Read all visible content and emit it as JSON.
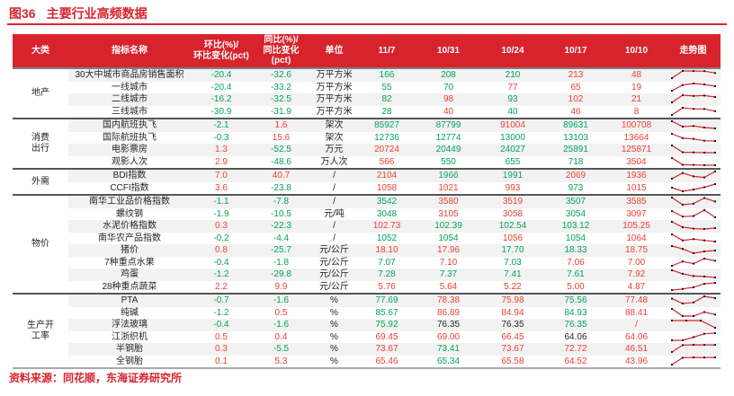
{
  "title": {
    "label": "图36",
    "text": "主要行业高频数据"
  },
  "source_note": "资料来源：同花顺，东海证券研究所",
  "colors": {
    "accent_red": "#d8232d",
    "value_red": "#f03e32",
    "value_green": "#00a45a",
    "value_black": "#231f20",
    "row_stripe": "#f2f2f2",
    "group_separator": "#55565a",
    "header_text": "#ffffff",
    "sparkline_line": "#d8232d",
    "sparkline_marker": "#1a1a1a"
  },
  "headers_display": {
    "wow": "环比(%)/\n环比变化(pct)",
    "yoy": "同比(%)/\n同比变化\n(pct)"
  },
  "chart_data": {
    "type": "table",
    "title": "图36 主要行业高频数据",
    "columns": [
      "大类",
      "指标名称",
      "环比(%)/环比变化(pct)",
      "同比(%)/同比变化(pct)",
      "单位",
      "11/7",
      "10/31",
      "10/24",
      "10/17",
      "10/10",
      "走势图"
    ],
    "legend_note": "green = decline vs prior week / negative, red = rise vs prior week / positive, black = unchanged",
    "groups": [
      {
        "category": "地产",
        "rows": [
          {
            "indicator": "30大中城市商品房销售面积",
            "wow": "-20.4",
            "wow_color": "g",
            "yoy": "-32.6",
            "yoy_color": "g",
            "unit": "万平方米",
            "values": [
              "166",
              "208",
              "210",
              "213",
              "48"
            ],
            "value_colors": [
              "g",
              "g",
              "g",
              "r",
              "r"
            ]
          },
          {
            "indicator": "一线城市",
            "wow": "-20.4",
            "wow_color": "g",
            "yoy": "-33.2",
            "yoy_color": "g",
            "unit": "万平方米",
            "values": [
              "55",
              "70",
              "77",
              "65",
              "19"
            ],
            "value_colors": [
              "g",
              "g",
              "r",
              "r",
              "r"
            ]
          },
          {
            "indicator": "二线城市",
            "wow": "-16.2",
            "wow_color": "g",
            "yoy": "-32.5",
            "yoy_color": "g",
            "unit": "万平方米",
            "values": [
              "82",
              "98",
              "93",
              "102",
              "21"
            ],
            "value_colors": [
              "g",
              "r",
              "g",
              "r",
              "r"
            ]
          },
          {
            "indicator": "三线城市",
            "wow": "-30.9",
            "wow_color": "g",
            "yoy": "-31.9",
            "yoy_color": "g",
            "unit": "万平方米",
            "values": [
              "28",
              "40",
              "40",
              "46",
              "8"
            ],
            "value_colors": [
              "g",
              "r",
              "g",
              "r",
              "r"
            ]
          }
        ]
      },
      {
        "category": "消费\n出行",
        "rows": [
          {
            "indicator": "国内航班执飞",
            "wow": "-2.1",
            "wow_color": "g",
            "yoy": "1.6",
            "yoy_color": "r",
            "unit": "架次",
            "values": [
              "85927",
              "87799",
              "91004",
              "89631",
              "100708"
            ],
            "value_colors": [
              "g",
              "g",
              "r",
              "g",
              "r"
            ]
          },
          {
            "indicator": "国际航班执飞",
            "wow": "-0.3",
            "wow_color": "g",
            "yoy": "15.6",
            "yoy_color": "r",
            "unit": "架次",
            "values": [
              "12736",
              "12774",
              "13000",
              "13103",
              "13664"
            ],
            "value_colors": [
              "g",
              "g",
              "g",
              "g",
              "r"
            ]
          },
          {
            "indicator": "电影票房",
            "wow": "1.3",
            "wow_color": "r",
            "yoy": "-52.5",
            "yoy_color": "g",
            "unit": "万元",
            "values": [
              "20724",
              "20449",
              "24027",
              "25891",
              "125871"
            ],
            "value_colors": [
              "r",
              "g",
              "g",
              "g",
              "r"
            ]
          },
          {
            "indicator": "观影人次",
            "wow": "2.9",
            "wow_color": "r",
            "yoy": "-48.6",
            "yoy_color": "g",
            "unit": "万人次",
            "values": [
              "566",
              "550",
              "655",
              "718",
              "3504"
            ],
            "value_colors": [
              "r",
              "g",
              "g",
              "g",
              "r"
            ]
          }
        ]
      },
      {
        "category": "外需",
        "rows": [
          {
            "indicator": "BDI指数",
            "wow": "7.0",
            "wow_color": "r",
            "yoy": "40.7",
            "yoy_color": "r",
            "unit": "/",
            "values": [
              "2104",
              "1966",
              "1991",
              "2069",
              "1936"
            ],
            "value_colors": [
              "r",
              "g",
              "g",
              "r",
              "r"
            ]
          },
          {
            "indicator": "CCFI指数",
            "wow": "3.6",
            "wow_color": "r",
            "yoy": "-23.8",
            "yoy_color": "g",
            "unit": "/",
            "values": [
              "1058",
              "1021",
              "993",
              "973",
              "1015"
            ],
            "value_colors": [
              "r",
              "r",
              "r",
              "g",
              "r"
            ]
          }
        ]
      },
      {
        "category": "物价",
        "rows": [
          {
            "indicator": "南华工业品价格指数",
            "wow": "-1.1",
            "wow_color": "g",
            "yoy": "-7.8",
            "yoy_color": "g",
            "unit": "/",
            "values": [
              "3542",
              "3580",
              "3519",
              "3507",
              "3585"
            ],
            "value_colors": [
              "g",
              "r",
              "r",
              "g",
              "r"
            ]
          },
          {
            "indicator": "螺纹钢",
            "wow": "-1.9",
            "wow_color": "g",
            "yoy": "-10.5",
            "yoy_color": "g",
            "unit": "元/吨",
            "values": [
              "3048",
              "3105",
              "3058",
              "3054",
              "3097"
            ],
            "value_colors": [
              "g",
              "r",
              "r",
              "g",
              "r"
            ]
          },
          {
            "indicator": "水泥价格指数",
            "wow": "0.3",
            "wow_color": "r",
            "yoy": "-22.3",
            "yoy_color": "g",
            "unit": "/",
            "values": [
              "102.73",
              "102.39",
              "102.54",
              "103.12",
              "105.25"
            ],
            "value_colors": [
              "r",
              "g",
              "g",
              "g",
              "r"
            ]
          },
          {
            "indicator": "南华农产品指数",
            "wow": "-0.2",
            "wow_color": "g",
            "yoy": "-4.4",
            "yoy_color": "g",
            "unit": "/",
            "values": [
              "1052",
              "1054",
              "1056",
              "1054",
              "1064"
            ],
            "value_colors": [
              "g",
              "g",
              "r",
              "g",
              "r"
            ]
          },
          {
            "indicator": "猪价",
            "wow": "0.8",
            "wow_color": "r",
            "yoy": "-25.7",
            "yoy_color": "g",
            "unit": "元/公斤",
            "values": [
              "18.10",
              "17.96",
              "17.70",
              "18.33",
              "18.75"
            ],
            "value_colors": [
              "r",
              "r",
              "g",
              "g",
              "r"
            ]
          },
          {
            "indicator": "7种重点水果",
            "wow": "-0.4",
            "wow_color": "g",
            "yoy": "-1.8",
            "yoy_color": "g",
            "unit": "元/公斤",
            "values": [
              "7.07",
              "7.10",
              "7.03",
              "7.06",
              "7.00"
            ],
            "value_colors": [
              "g",
              "r",
              "g",
              "r",
              "r"
            ]
          },
          {
            "indicator": "鸡蛋",
            "wow": "-1.2",
            "wow_color": "g",
            "yoy": "-29.8",
            "yoy_color": "g",
            "unit": "元/公斤",
            "values": [
              "7.28",
              "7.37",
              "7.41",
              "7.61",
              "7.92"
            ],
            "value_colors": [
              "g",
              "g",
              "g",
              "g",
              "r"
            ]
          },
          {
            "indicator": "28种重点蔬菜",
            "wow": "2.2",
            "wow_color": "r",
            "yoy": "9.9",
            "yoy_color": "r",
            "unit": "元/公斤",
            "values": [
              "5.76",
              "5.64",
              "5.22",
              "5.00",
              "4.87"
            ],
            "value_colors": [
              "r",
              "r",
              "r",
              "r",
              "r"
            ]
          }
        ]
      },
      {
        "category": "生产开\n工率",
        "rows": [
          {
            "indicator": "PTA",
            "wow": "-0.7",
            "wow_color": "g",
            "yoy": "-1.6",
            "yoy_color": "g",
            "unit": "%",
            "values": [
              "77.69",
              "78.38",
              "75.98",
              "75.56",
              "77.48"
            ],
            "value_colors": [
              "g",
              "r",
              "r",
              "g",
              "r"
            ]
          },
          {
            "indicator": "纯碱",
            "wow": "-1.2",
            "wow_color": "g",
            "yoy": "0.5",
            "yoy_color": "r",
            "unit": "%",
            "values": [
              "85.67",
              "86.89",
              "84.94",
              "84.93",
              "88.41"
            ],
            "value_colors": [
              "g",
              "r",
              "r",
              "g",
              "r"
            ]
          },
          {
            "indicator": "浮法玻璃",
            "wow": "-0.4",
            "wow_color": "g",
            "yoy": "-1.6",
            "yoy_color": "g",
            "unit": "%",
            "values": [
              "75.92",
              "76.35",
              "76.35",
              "76.35",
              "/"
            ],
            "value_colors": [
              "g",
              "k",
              "k",
              "g",
              "r"
            ]
          },
          {
            "indicator": "江浙织机",
            "wow": "0.5",
            "wow_color": "r",
            "yoy": "0.4",
            "yoy_color": "r",
            "unit": "%",
            "values": [
              "69.45",
              "69.00",
              "66.45",
              "64.06",
              "64.06"
            ],
            "value_colors": [
              "r",
              "r",
              "r",
              "k",
              "r"
            ]
          },
          {
            "indicator": "半钢胎",
            "wow": "0.3",
            "wow_color": "r",
            "yoy": "-5.5",
            "yoy_color": "g",
            "unit": "%",
            "values": [
              "73.67",
              "73.41",
              "73.67",
              "72.72",
              "46.51"
            ],
            "value_colors": [
              "r",
              "g",
              "r",
              "r",
              "r"
            ]
          },
          {
            "indicator": "全钢胎",
            "wow": "0.1",
            "wow_color": "r",
            "yoy": "5.3",
            "yoy_color": "r",
            "unit": "%",
            "values": [
              "65.46",
              "65.34",
              "65.58",
              "64.52",
              "43.96"
            ],
            "value_colors": [
              "r",
              "g",
              "r",
              "r",
              "r"
            ]
          }
        ]
      }
    ]
  }
}
